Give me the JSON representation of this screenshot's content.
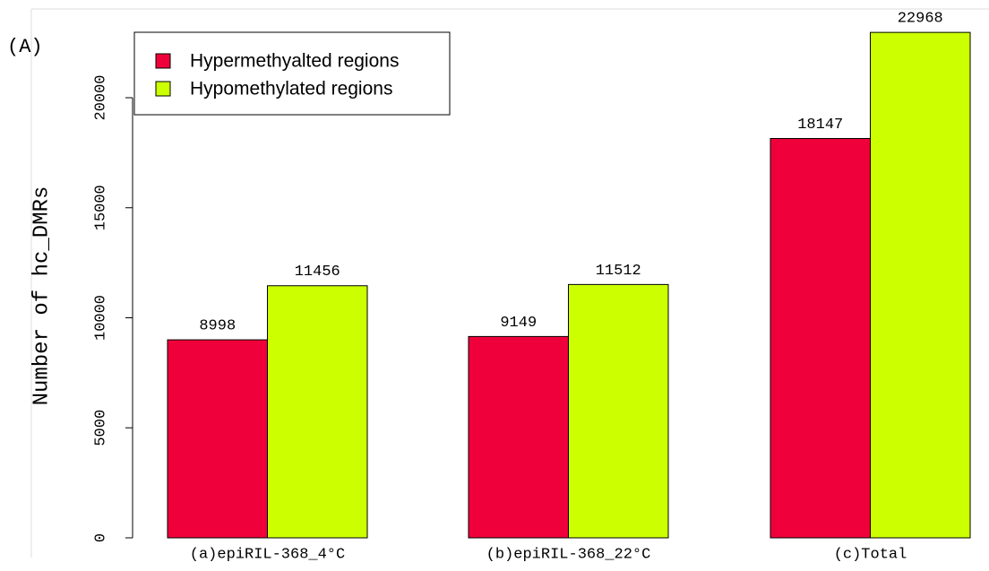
{
  "chart_data": {
    "type": "bar",
    "annotation": "(A)",
    "ylabel": "Number of hc_DMRs",
    "categories": [
      "(a)epiRIL-368_4°C",
      "(b)epiRIL-368_22°C",
      "(c)Total"
    ],
    "series": [
      {
        "name": "Hypermethyalted regions",
        "color": "#f0003a",
        "values": [
          8998,
          9149,
          18147
        ]
      },
      {
        "name": "Hypomethylated regions",
        "color": "#ccff00",
        "values": [
          11456,
          11512,
          22968
        ]
      }
    ],
    "ylim": [
      0,
      24000
    ],
    "yticks": [
      0,
      5000,
      10000,
      15000,
      20000
    ],
    "legend": "top-left"
  }
}
